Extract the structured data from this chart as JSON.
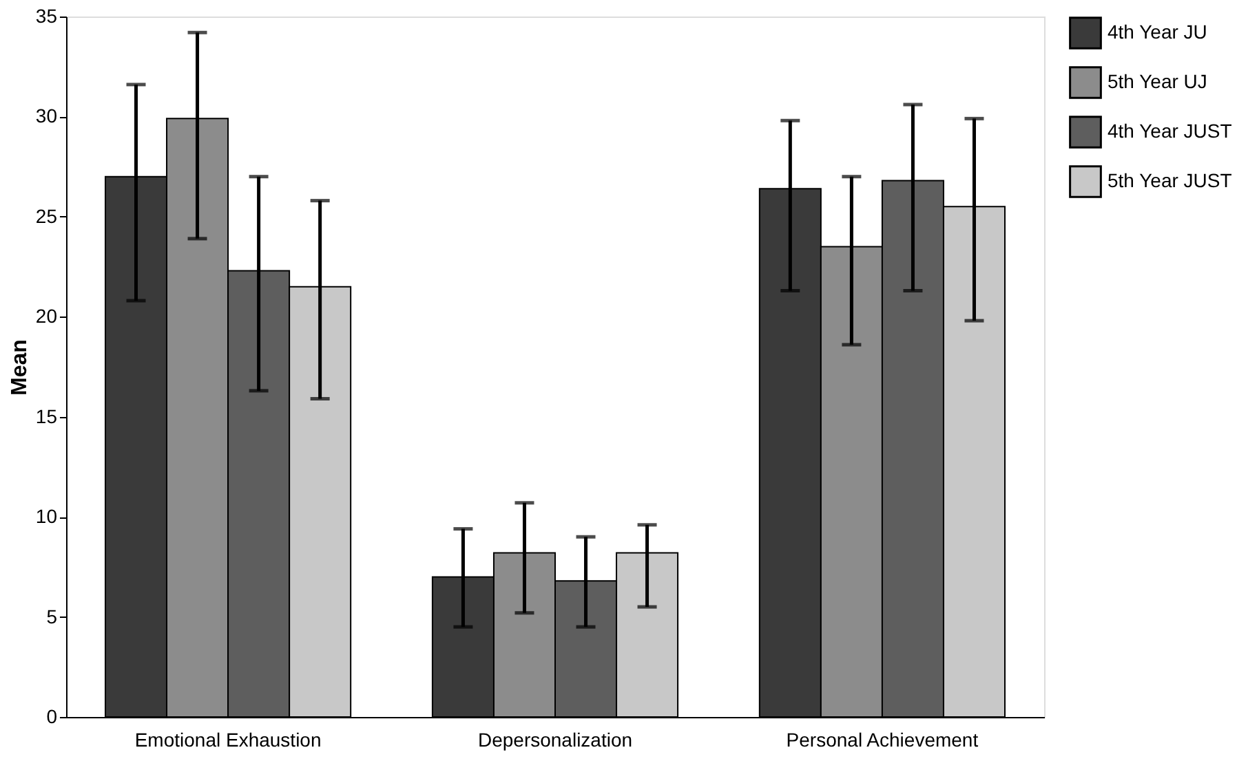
{
  "chart_data": {
    "type": "bar",
    "ylabel": "Mean",
    "categories": [
      "Emotional Exhaustion",
      "Depersonalization",
      "Personal Achievement"
    ],
    "series": [
      {
        "name": "4th Year JU",
        "color": "#3a3a3a",
        "values": [
          27.0,
          7.0,
          26.4
        ],
        "errors": [
          [
            20.8,
            31.6
          ],
          [
            4.5,
            9.4
          ],
          [
            21.3,
            29.8
          ]
        ]
      },
      {
        "name": "5th Year UJ",
        "color": "#8c8c8c",
        "values": [
          29.9,
          8.2,
          23.5
        ],
        "errors": [
          [
            23.9,
            34.2
          ],
          [
            5.2,
            10.7
          ],
          [
            18.6,
            27.0
          ]
        ]
      },
      {
        "name": "4th Year JUST",
        "color": "#5e5e5e",
        "values": [
          22.3,
          6.8,
          26.8
        ],
        "errors": [
          [
            16.3,
            27.0
          ],
          [
            4.5,
            9.0
          ],
          [
            21.3,
            30.6
          ]
        ]
      },
      {
        "name": "5th Year JUST",
        "color": "#c8c8c8",
        "values": [
          21.5,
          8.2,
          25.5
        ],
        "errors": [
          [
            15.9,
            25.8
          ],
          [
            5.5,
            9.6
          ],
          [
            19.8,
            29.9
          ]
        ]
      }
    ],
    "ylim": [
      0,
      35
    ],
    "yticks": [
      0,
      5,
      10,
      15,
      20,
      25,
      30,
      35
    ],
    "grid": false,
    "legend": "top right"
  }
}
